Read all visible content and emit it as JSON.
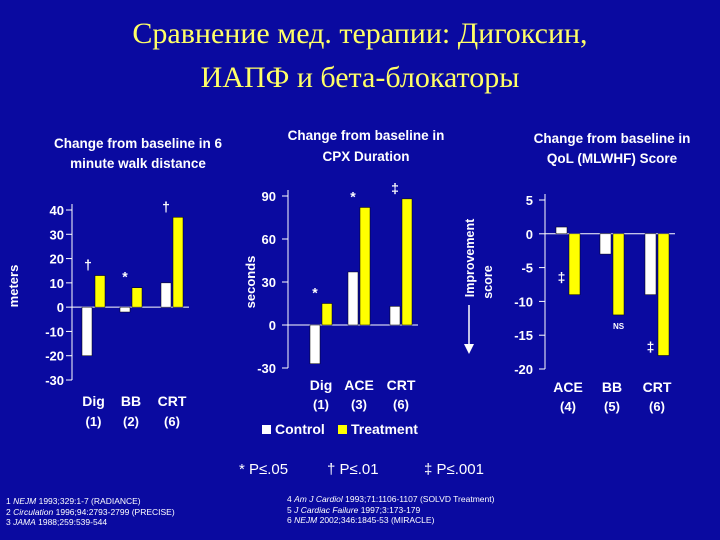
{
  "slide": {
    "title_line1": "Сравнение мед. терапии: Дигоксин,",
    "title_line2": "ИАПФ и бета-блокаторы",
    "significance": {
      "p05": "* P≤.05",
      "p01": "† P≤.01",
      "p001": "‡ P≤.001"
    },
    "legend": {
      "control": "Control",
      "treatment": "Treatment"
    },
    "improvement_label": "Improvement score",
    "references_left": [
      {
        "journal": "NEJM",
        "text": " 1993;329:1-7 (RADIANCE)",
        "num": "1"
      },
      {
        "journal": "Circulation",
        "text": " 1996;94:2793-2799 (PRECISE)",
        "num": "2"
      },
      {
        "journal": "JAMA",
        "text": " 1988;259:539-544",
        "num": "3"
      }
    ],
    "references_right": [
      {
        "journal": "Am J Cardiol",
        "text": " 1993;71:1106-1107 (SOLVD Treatment)",
        "num": "4"
      },
      {
        "journal": "J Cardiac Failure",
        "text": " 1997;3:173-179",
        "num": "5"
      },
      {
        "journal": "NEJM",
        "text": " 2002;346:1845-53 (MIRACLE)",
        "num": "6"
      }
    ]
  },
  "colors": {
    "background": "#0a0aa0",
    "title": "#ffff66",
    "control": "#ffffff",
    "treatment": "#ffff00"
  },
  "chart_data": [
    {
      "type": "bar",
      "title": "Change from baseline in 6 minute walk distance",
      "ylabel": "meters",
      "ylim": [
        -30,
        40
      ],
      "yticks": [
        -30,
        -20,
        -10,
        0,
        10,
        20,
        30,
        40
      ],
      "categories": [
        {
          "name": "Dig",
          "ref": "(1)"
        },
        {
          "name": "BB",
          "ref": "(2)"
        },
        {
          "name": "CRT",
          "ref": "(6)"
        }
      ],
      "series": [
        {
          "name": "Control",
          "values": [
            -20,
            -2,
            10
          ]
        },
        {
          "name": "Treatment",
          "values": [
            13,
            8,
            37
          ]
        }
      ],
      "annotations": [
        {
          "category": "Dig",
          "series": "Treatment",
          "symbol": "†"
        },
        {
          "category": "BB",
          "series": "Treatment",
          "symbol": "*"
        },
        {
          "category": "CRT",
          "series": "Treatment",
          "symbol": "†"
        }
      ]
    },
    {
      "type": "bar",
      "title": "Change from baseline in CPX Duration",
      "ylabel": "seconds",
      "ylim": [
        -30,
        90
      ],
      "yticks": [
        -30,
        0,
        30,
        60,
        90
      ],
      "categories": [
        {
          "name": "Dig",
          "ref": "(1)"
        },
        {
          "name": "ACE",
          "ref": "(3)"
        },
        {
          "name": "CRT",
          "ref": "(6)"
        }
      ],
      "series": [
        {
          "name": "Control",
          "values": [
            -27,
            37,
            13
          ]
        },
        {
          "name": "Treatment",
          "values": [
            15,
            82,
            88
          ]
        }
      ],
      "annotations": [
        {
          "category": "Dig",
          "series": "Treatment",
          "symbol": "*"
        },
        {
          "category": "ACE",
          "series": "Treatment",
          "symbol": "*"
        },
        {
          "category": "CRT",
          "series": "Treatment",
          "symbol": "‡"
        }
      ]
    },
    {
      "type": "bar",
      "title": "Change from baseline in QoL (MLWHF) Score",
      "ylabel": "",
      "ylim": [
        -20,
        5
      ],
      "yticks": [
        -20,
        -15,
        -10,
        -5,
        0,
        5
      ],
      "inverted_note": "Improvement score",
      "categories": [
        {
          "name": "ACE",
          "ref": "(4)"
        },
        {
          "name": "BB",
          "ref": "(5)"
        },
        {
          "name": "CRT",
          "ref": "(6)"
        }
      ],
      "series": [
        {
          "name": "Control",
          "values": [
            1,
            -3,
            -9
          ]
        },
        {
          "name": "Treatment",
          "values": [
            -9,
            -12,
            -18
          ]
        }
      ],
      "annotations": [
        {
          "category": "ACE",
          "series": "Treatment",
          "symbol": "‡"
        },
        {
          "category": "BB",
          "series": "Treatment",
          "symbol": "NS"
        },
        {
          "category": "CRT",
          "series": "Treatment",
          "symbol": "‡"
        }
      ]
    }
  ]
}
